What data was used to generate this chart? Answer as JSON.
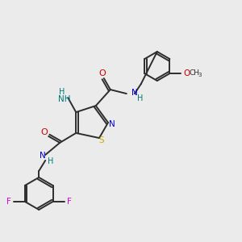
{
  "background_color": "#ebebeb",
  "bond_color": "#2d2d2d",
  "atom_colors": {
    "N": "#0000cc",
    "O": "#cc0000",
    "S": "#ccaa00",
    "F": "#dd00dd",
    "H": "#007777",
    "C": "#2d2d2d"
  }
}
